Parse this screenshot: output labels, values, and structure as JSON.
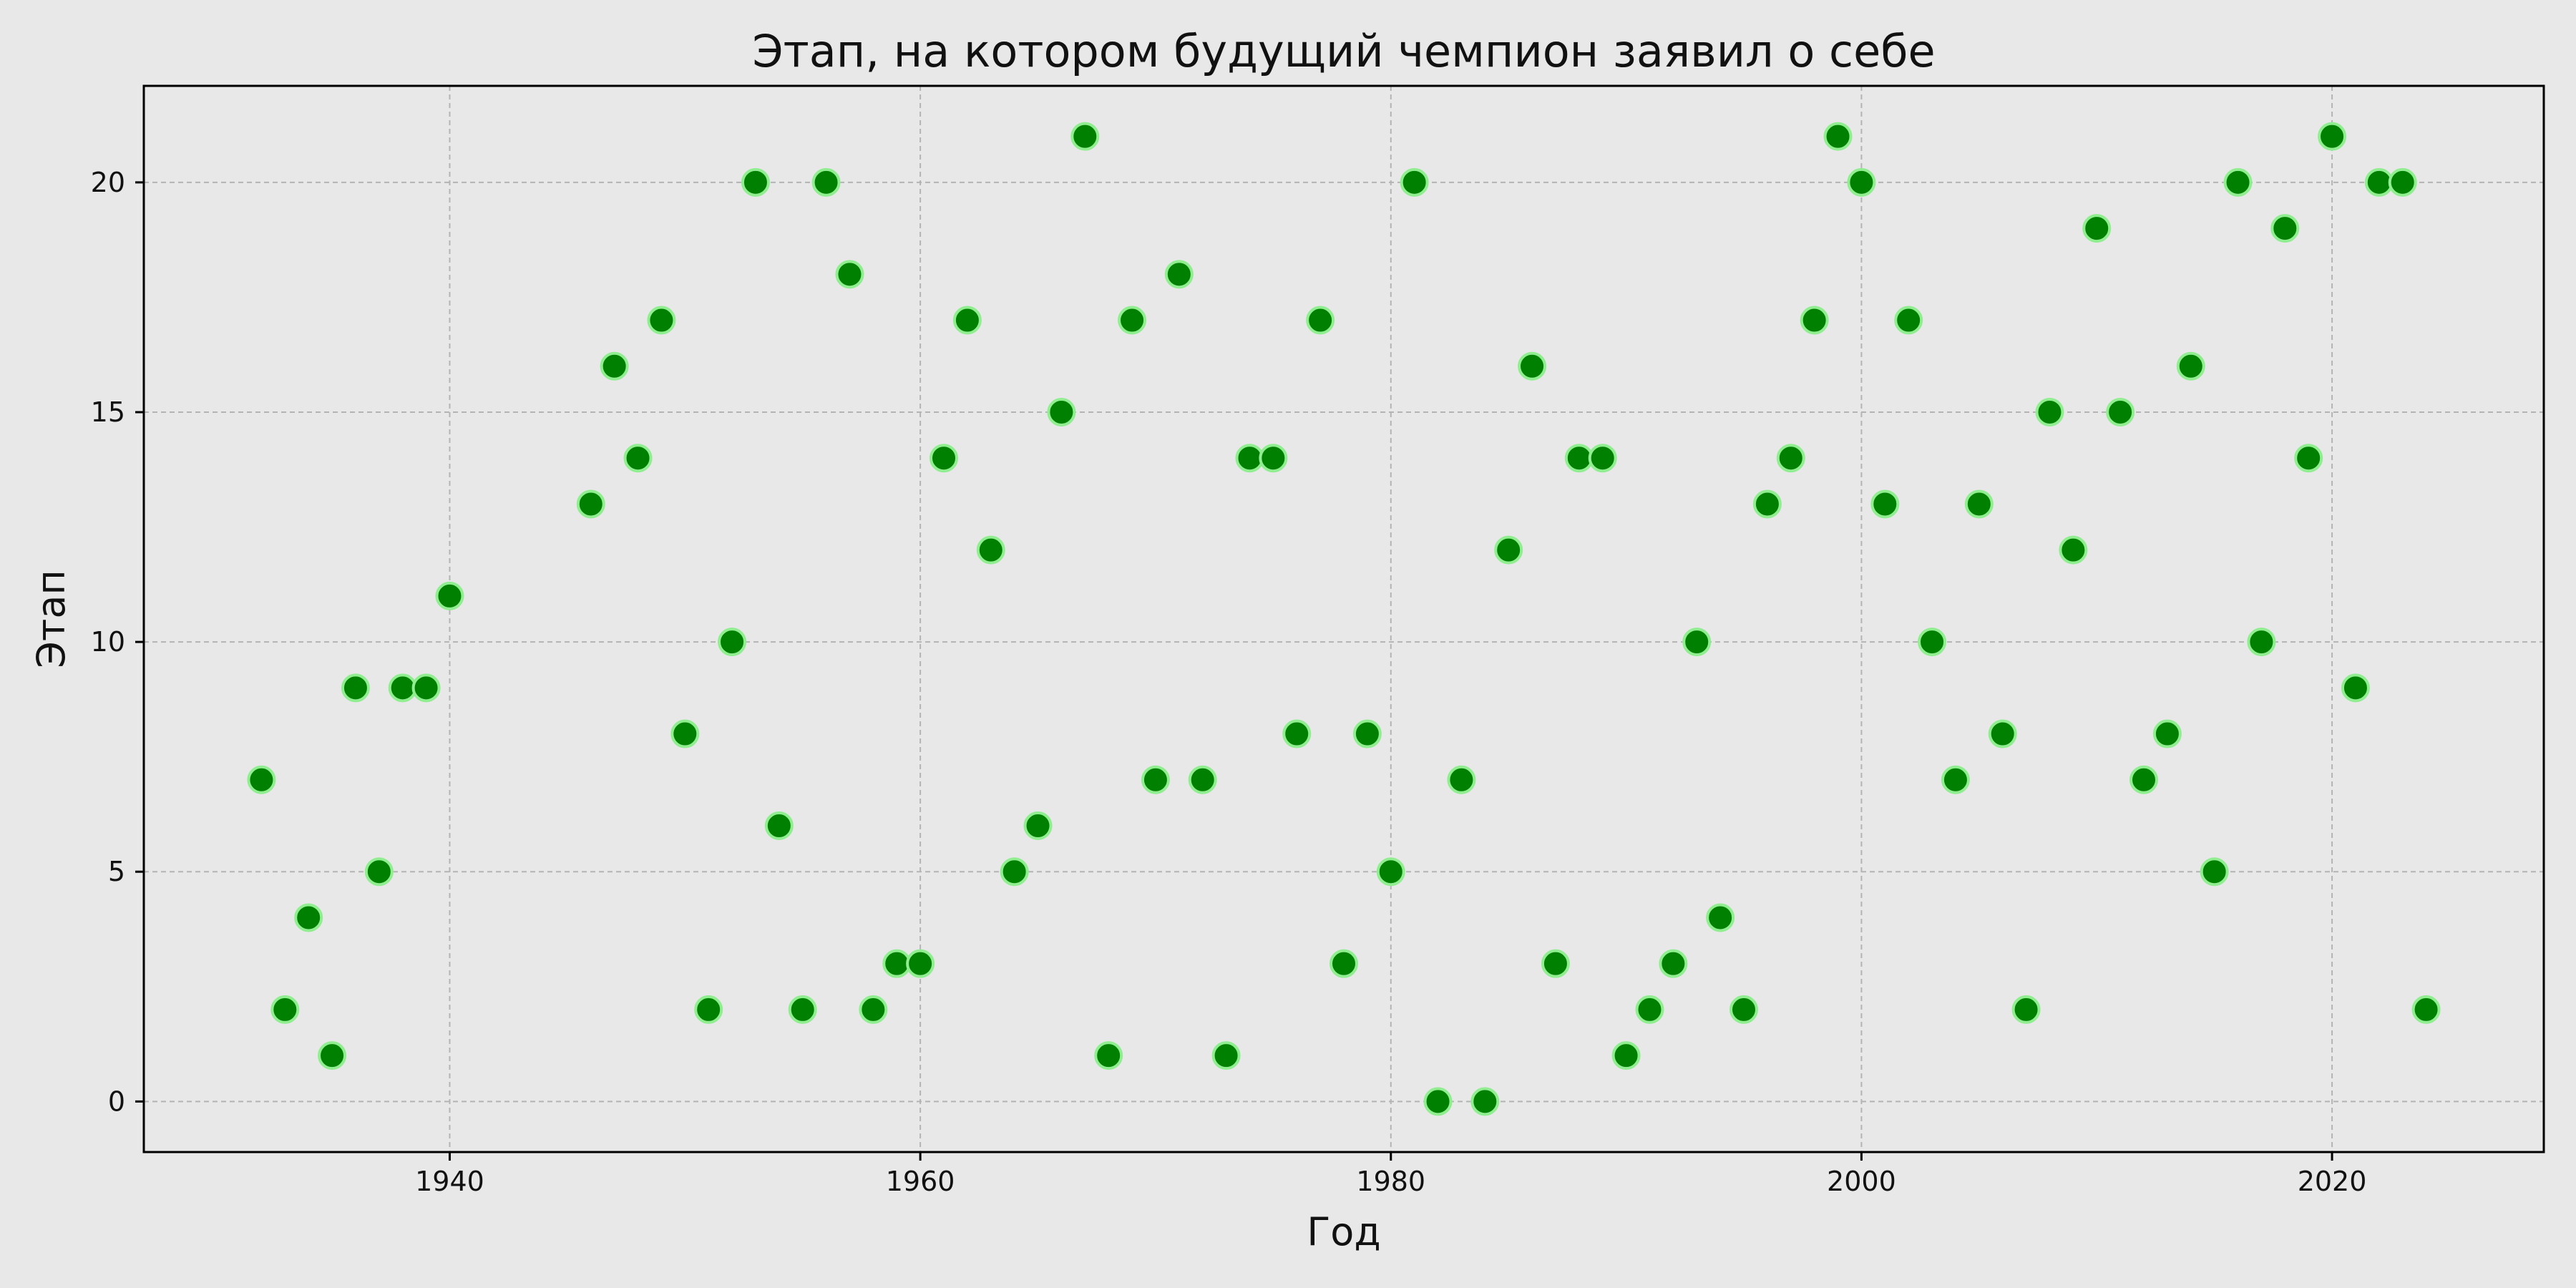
{
  "chart_data": {
    "type": "scatter",
    "title": "Этап, на котором будущий чемпион заявил о себе",
    "xlabel": "Год",
    "ylabel": "Этап",
    "xlim": [
      1927,
      2029
    ],
    "ylim": [
      -1.1,
      22.1
    ],
    "xticks": [
      1940,
      1960,
      1980,
      2000,
      2020
    ],
    "yticks": [
      0,
      5,
      10,
      15,
      20
    ],
    "grid": true,
    "colors": {
      "marker_fill": "#008000",
      "marker_edge": "#90ee90",
      "background": "#e8e8e8"
    },
    "points": [
      [
        1932,
        7
      ],
      [
        1933,
        2
      ],
      [
        1934,
        4
      ],
      [
        1935,
        1
      ],
      [
        1936,
        9
      ],
      [
        1937,
        5
      ],
      [
        1938,
        9
      ],
      [
        1939,
        9
      ],
      [
        1940,
        11
      ],
      [
        1946,
        13
      ],
      [
        1947,
        16
      ],
      [
        1948,
        14
      ],
      [
        1949,
        17
      ],
      [
        1950,
        8
      ],
      [
        1951,
        2
      ],
      [
        1952,
        10
      ],
      [
        1953,
        20
      ],
      [
        1954,
        6
      ],
      [
        1955,
        2
      ],
      [
        1956,
        20
      ],
      [
        1957,
        18
      ],
      [
        1958,
        2
      ],
      [
        1959,
        3
      ],
      [
        1960,
        3
      ],
      [
        1961,
        14
      ],
      [
        1962,
        17
      ],
      [
        1963,
        12
      ],
      [
        1964,
        5
      ],
      [
        1965,
        6
      ],
      [
        1966,
        15
      ],
      [
        1967,
        21
      ],
      [
        1968,
        1
      ],
      [
        1969,
        17
      ],
      [
        1970,
        7
      ],
      [
        1971,
        18
      ],
      [
        1972,
        7
      ],
      [
        1973,
        1
      ],
      [
        1974,
        14
      ],
      [
        1975,
        14
      ],
      [
        1976,
        8
      ],
      [
        1977,
        17
      ],
      [
        1978,
        3
      ],
      [
        1979,
        8
      ],
      [
        1980,
        5
      ],
      [
        1981,
        20
      ],
      [
        1982,
        0
      ],
      [
        1983,
        7
      ],
      [
        1984,
        0
      ],
      [
        1985,
        12
      ],
      [
        1986,
        16
      ],
      [
        1987,
        3
      ],
      [
        1988,
        14
      ],
      [
        1989,
        14
      ],
      [
        1990,
        1
      ],
      [
        1991,
        2
      ],
      [
        1992,
        3
      ],
      [
        1993,
        10
      ],
      [
        1994,
        4
      ],
      [
        1995,
        2
      ],
      [
        1996,
        13
      ],
      [
        1997,
        14
      ],
      [
        1998,
        17
      ],
      [
        1999,
        21
      ],
      [
        2000,
        20
      ],
      [
        2001,
        13
      ],
      [
        2002,
        17
      ],
      [
        2003,
        10
      ],
      [
        2004,
        7
      ],
      [
        2005,
        13
      ],
      [
        2006,
        8
      ],
      [
        2007,
        2
      ],
      [
        2008,
        15
      ],
      [
        2009,
        12
      ],
      [
        2010,
        19
      ],
      [
        2011,
        15
      ],
      [
        2012,
        7
      ],
      [
        2013,
        8
      ],
      [
        2014,
        16
      ],
      [
        2015,
        5
      ],
      [
        2016,
        20
      ],
      [
        2017,
        10
      ],
      [
        2018,
        19
      ],
      [
        2019,
        14
      ],
      [
        2020,
        21
      ],
      [
        2021,
        9
      ],
      [
        2022,
        20
      ],
      [
        2023,
        20
      ],
      [
        2024,
        2
      ]
    ]
  }
}
